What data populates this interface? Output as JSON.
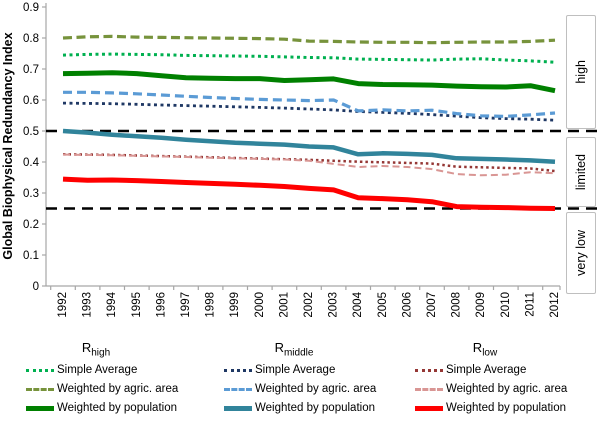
{
  "y_axis": {
    "title": "Global Biophysical Redundancy Index",
    "ticks": [
      "0",
      "0.1",
      "0.2",
      "0.3",
      "0.4",
      "0.5",
      "0.6",
      "0.7",
      "0.8",
      "0.9"
    ]
  },
  "zones": [
    {
      "label": "high"
    },
    {
      "label": "limited"
    },
    {
      "label": "very low"
    }
  ],
  "chart_data": {
    "type": "line",
    "x": [
      "1992",
      "1993",
      "1994",
      "1995",
      "1996",
      "1997",
      "1998",
      "1999",
      "2000",
      "2001",
      "2002",
      "2003",
      "2004",
      "2005",
      "2006",
      "2007",
      "2008",
      "2009",
      "2010",
      "2011",
      "2012"
    ],
    "ylim": [
      0,
      0.9
    ],
    "grid": false,
    "legend_position": "bottom",
    "reference_lines": [
      {
        "value": 0.5,
        "color": "#000000",
        "style": "dashed"
      },
      {
        "value": 0.25,
        "color": "#000000",
        "style": "dashed"
      }
    ],
    "series": [
      {
        "id": "rhigh-simple-average",
        "group": "R_high",
        "name": "Simple Average",
        "color": "#00B050",
        "style": "dotted",
        "width": 3,
        "dash": "3 3.5",
        "values": [
          0.745,
          0.747,
          0.748,
          0.747,
          0.746,
          0.744,
          0.743,
          0.742,
          0.741,
          0.739,
          0.737,
          0.736,
          0.732,
          0.731,
          0.73,
          0.729,
          0.732,
          0.733,
          0.729,
          0.726,
          0.722
        ]
      },
      {
        "id": "rhigh-weighted-agric-area",
        "group": "R_high",
        "name": "Weighted by agric. area",
        "color": "#77933C",
        "style": "dashed",
        "width": 3.2,
        "dash": "9 4.5",
        "values": [
          0.8,
          0.804,
          0.805,
          0.803,
          0.802,
          0.801,
          0.8,
          0.799,
          0.798,
          0.796,
          0.79,
          0.789,
          0.787,
          0.786,
          0.786,
          0.785,
          0.786,
          0.787,
          0.787,
          0.789,
          0.793
        ]
      },
      {
        "id": "rhigh-weighted-population",
        "group": "R_high",
        "name": "Weighted by population",
        "color": "#008000",
        "style": "solid",
        "width": 5,
        "dash": "",
        "values": [
          0.685,
          0.686,
          0.688,
          0.685,
          0.678,
          0.672,
          0.67,
          0.669,
          0.669,
          0.663,
          0.665,
          0.668,
          0.653,
          0.65,
          0.649,
          0.648,
          0.645,
          0.643,
          0.642,
          0.646,
          0.63
        ]
      },
      {
        "id": "rmiddle-simple-average",
        "group": "R_middle",
        "name": "Simple Average",
        "color": "#1F3864",
        "style": "dotted",
        "width": 2.8,
        "dash": "3 3.5",
        "values": [
          0.59,
          0.589,
          0.588,
          0.586,
          0.584,
          0.582,
          0.58,
          0.578,
          0.576,
          0.574,
          0.571,
          0.568,
          0.563,
          0.56,
          0.557,
          0.553,
          0.548,
          0.543,
          0.54,
          0.538,
          0.535
        ]
      },
      {
        "id": "rmiddle-weighted-agric-area",
        "group": "R_middle",
        "name": "Weighted by agric. area",
        "color": "#5B9BD5",
        "style": "dashed",
        "width": 3.2,
        "dash": "9 5",
        "values": [
          0.625,
          0.625,
          0.623,
          0.62,
          0.616,
          0.612,
          0.608,
          0.605,
          0.602,
          0.6,
          0.598,
          0.6,
          0.565,
          0.568,
          0.565,
          0.567,
          0.556,
          0.549,
          0.547,
          0.552,
          0.558
        ]
      },
      {
        "id": "rmiddle-weighted-population",
        "group": "R_middle",
        "name": "Weighted by population",
        "color": "#31849B",
        "style": "solid",
        "width": 4.5,
        "dash": "",
        "values": [
          0.5,
          0.495,
          0.488,
          0.483,
          0.478,
          0.472,
          0.467,
          0.462,
          0.459,
          0.456,
          0.45,
          0.447,
          0.425,
          0.428,
          0.426,
          0.423,
          0.412,
          0.41,
          0.408,
          0.405,
          0.401
        ]
      },
      {
        "id": "rlow-simple-average",
        "group": "R_low",
        "name": "Simple Average",
        "color": "#953735",
        "style": "dotted",
        "width": 2.5,
        "dash": "2.5 3",
        "values": [
          0.425,
          0.424,
          0.423,
          0.421,
          0.419,
          0.417,
          0.415,
          0.413,
          0.411,
          0.409,
          0.407,
          0.404,
          0.401,
          0.399,
          0.397,
          0.395,
          0.385,
          0.383,
          0.381,
          0.379,
          0.371
        ]
      },
      {
        "id": "rlow-weighted-agric-area",
        "group": "R_low",
        "name": "Weighted by agric. area",
        "color": "#D99694",
        "style": "dashed",
        "width": 2,
        "dash": "7 4",
        "values": [
          0.424,
          0.423,
          0.422,
          0.42,
          0.418,
          0.416,
          0.414,
          0.412,
          0.41,
          0.408,
          0.404,
          0.394,
          0.384,
          0.387,
          0.384,
          0.377,
          0.361,
          0.357,
          0.359,
          0.367,
          0.364
        ]
      },
      {
        "id": "rlow-weighted-population",
        "group": "R_low",
        "name": "Weighted by population",
        "color": "#FF0000",
        "style": "solid",
        "width": 5,
        "dash": "",
        "values": [
          0.345,
          0.341,
          0.342,
          0.34,
          0.337,
          0.334,
          0.331,
          0.328,
          0.325,
          0.321,
          0.315,
          0.31,
          0.285,
          0.282,
          0.278,
          0.272,
          0.256,
          0.254,
          0.253,
          0.251,
          0.25
        ]
      }
    ]
  },
  "legend": {
    "groups": [
      {
        "header_base": "R",
        "header_sub": "high",
        "items": [
          {
            "label": "Simple Average",
            "series": 0
          },
          {
            "label": "Weighted by agric. area",
            "series": 1
          },
          {
            "label": "Weighted by population",
            "series": 2
          }
        ]
      },
      {
        "header_base": "R",
        "header_sub": "middle",
        "items": [
          {
            "label": "Simple Average",
            "series": 3
          },
          {
            "label": "Weighted by agric. area",
            "series": 4
          },
          {
            "label": "Weighted by population",
            "series": 5
          }
        ]
      },
      {
        "header_base": "R",
        "header_sub": "low",
        "items": [
          {
            "label": "Simple Average",
            "series": 6
          },
          {
            "label": "Weighted by agric. area",
            "series": 7
          },
          {
            "label": "Weighted by population",
            "series": 8
          }
        ]
      }
    ]
  }
}
